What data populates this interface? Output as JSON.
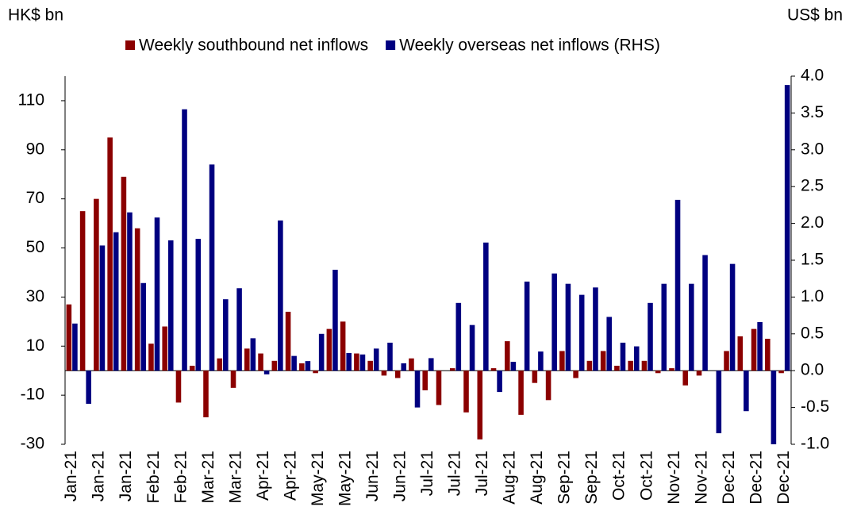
{
  "chart_data": {
    "type": "bar",
    "y_label": "HK$ bn",
    "y2_label": "US$ bn",
    "categories": [
      "Jan-21",
      null,
      "Jan-21",
      null,
      "Jan-21",
      null,
      "Feb-21",
      null,
      "Feb-21",
      null,
      "Mar-21",
      null,
      "Mar-21",
      null,
      "Apr-21",
      null,
      "Apr-21",
      null,
      "May-21",
      null,
      "May-21",
      null,
      "Jun-21",
      null,
      "Jun-21",
      null,
      "Jul-21",
      null,
      "Jul-21",
      null,
      "Jul-21",
      null,
      "Aug-21",
      null,
      "Aug-21",
      null,
      "Sep-21",
      null,
      "Sep-21",
      null,
      "Oct-21",
      null,
      "Oct-21",
      null,
      "Nov-21",
      null,
      "Nov-21",
      null,
      "Dec-21",
      null,
      "Dec-21",
      null,
      "Dec-21"
    ],
    "series": [
      {
        "name": "Weekly southbound net inflows",
        "color": "#8b0000",
        "values": [
          27,
          65,
          70,
          95,
          79,
          58,
          11,
          18,
          -13,
          2,
          -19,
          5,
          -7,
          9,
          7,
          4,
          24,
          3,
          -1,
          17,
          20,
          7,
          4,
          -2,
          -3,
          5,
          -8,
          -14,
          1,
          -17,
          -28,
          1,
          12,
          -18,
          -5,
          -12,
          8,
          -3,
          4,
          8,
          2,
          4,
          4,
          -1,
          1,
          -6,
          -2,
          0,
          8,
          14,
          17,
          13,
          -1
        ]
      },
      {
        "name": "Weekly overseas net inflows (RHS)",
        "color": "#000080",
        "axis": "y2",
        "values": [
          0.64,
          -0.45,
          1.7,
          1.88,
          2.15,
          1.19,
          2.08,
          1.77,
          3.55,
          1.79,
          2.8,
          0.97,
          1.12,
          0.44,
          -0.05,
          2.04,
          0.2,
          0.13,
          0.5,
          1.37,
          0.24,
          0.22,
          0.3,
          0.38,
          0.1,
          -0.5,
          0.17,
          0,
          0.92,
          0.62,
          1.74,
          -0.29,
          0.12,
          1.21,
          0.26,
          1.32,
          1.18,
          1.03,
          1.13,
          0.73,
          0.38,
          0.33,
          0.92,
          1.18,
          2.32,
          1.18,
          1.57,
          -0.85,
          1.45,
          -0.55,
          0.66,
          -1,
          3.88
        ]
      }
    ],
    "ylim": [
      -30,
      120
    ],
    "yticks": [
      -30,
      -10,
      10,
      30,
      50,
      70,
      90,
      110
    ],
    "y2lim": [
      -1,
      4
    ],
    "y2ticks": [
      {
        "value": -1,
        "label": "-1.0"
      },
      -0.5,
      {
        "value": 0,
        "label": "0.0"
      },
      0.5,
      {
        "value": 1,
        "label": "1.0"
      },
      1.5,
      {
        "value": 2,
        "label": "2.0"
      },
      2.5,
      {
        "value": 3,
        "label": "3.0"
      },
      3.5,
      {
        "value": 4,
        "label": "4.0"
      }
    ],
    "legend": "top",
    "grid": false
  }
}
